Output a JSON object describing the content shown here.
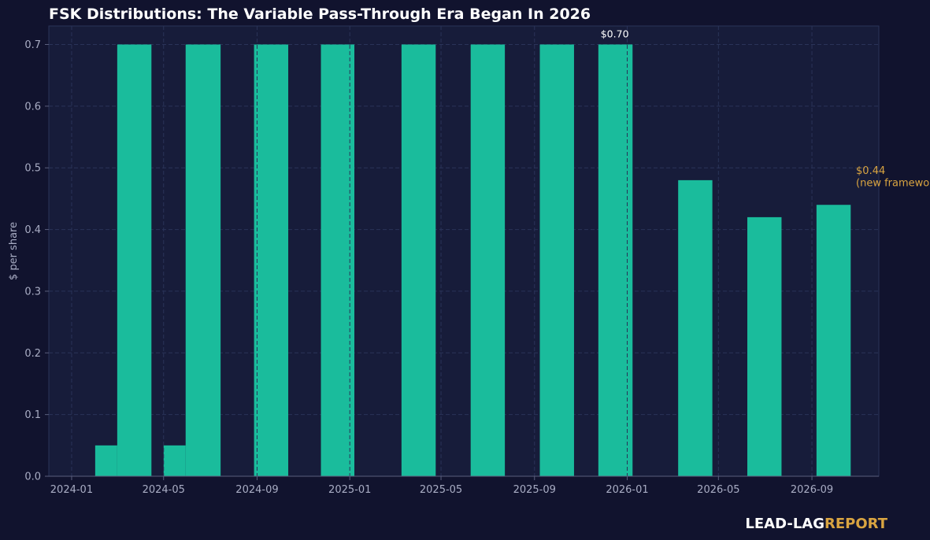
{
  "colors": {
    "background": "#11132e",
    "plot_background": "#171c3a",
    "bar": "#1abc9c",
    "grid": "#2a3358",
    "tick_text": "#a9adc4",
    "title_text": "#ffffff",
    "annotation_gold": "#d9a441",
    "brand_white": "#ffffff",
    "brand_gold": "#d9a441"
  },
  "chart_data": {
    "type": "bar",
    "title": "FSK Distributions: The Variable Pass-Through Era Began In 2026",
    "xlabel": "",
    "ylabel": "$ per share",
    "ylim": [
      0,
      0.73
    ],
    "xlim": [
      "2023-12-02",
      "2026-11-28"
    ],
    "grid": true,
    "x_tick_labels": [
      "2024-01",
      "2024-05",
      "2024-09",
      "2025-01",
      "2025-05",
      "2025-09",
      "2026-01",
      "2026-05",
      "2026-09"
    ],
    "x_tick_dates": [
      "2024-01-01",
      "2024-05-01",
      "2024-09-01",
      "2025-01-01",
      "2025-05-01",
      "2025-09-01",
      "2026-01-01",
      "2026-05-01",
      "2026-09-01"
    ],
    "y_ticks": [
      0.0,
      0.1,
      0.2,
      0.3,
      0.4,
      0.5,
      0.6,
      0.7
    ],
    "y_tick_labels": [
      "0.0",
      "0.1",
      "0.2",
      "0.3",
      "0.4",
      "0.5",
      "0.6",
      "0.7"
    ],
    "bars": [
      {
        "start": "2024-02-01",
        "end": "2024-03-01",
        "value": 0.05
      },
      {
        "start": "2024-03-01",
        "end": "2024-04-15",
        "value": 0.7
      },
      {
        "start": "2024-05-01",
        "end": "2024-05-30",
        "value": 0.05
      },
      {
        "start": "2024-05-30",
        "end": "2024-07-15",
        "value": 0.7
      },
      {
        "start": "2024-08-28",
        "end": "2024-10-12",
        "value": 0.7
      },
      {
        "start": "2024-11-24",
        "end": "2025-01-07",
        "value": 0.7
      },
      {
        "start": "2025-03-10",
        "end": "2025-04-24",
        "value": 0.7
      },
      {
        "start": "2025-06-09",
        "end": "2025-07-24",
        "value": 0.7
      },
      {
        "start": "2025-09-08",
        "end": "2025-10-23",
        "value": 0.7
      },
      {
        "start": "2025-11-24",
        "end": "2026-01-08",
        "value": 0.7
      },
      {
        "start": "2026-03-09",
        "end": "2026-04-23",
        "value": 0.48
      },
      {
        "start": "2026-06-08",
        "end": "2026-07-23",
        "value": 0.42
      },
      {
        "start": "2026-09-07",
        "end": "2026-10-22",
        "value": 0.44
      }
    ],
    "annotations": [
      {
        "text": "$0.70",
        "x": "2025-11-27",
        "y": 0.7,
        "style": "white"
      },
      {
        "text": "$0.44",
        "x": "2026-10-29",
        "y": 0.49,
        "style": "gold"
      },
      {
        "text": "(new framework)",
        "x": "2026-10-29",
        "y": 0.47,
        "style": "gold"
      }
    ]
  },
  "brand": {
    "part1": "LEAD-LAG",
    "part2": "REPORT"
  }
}
